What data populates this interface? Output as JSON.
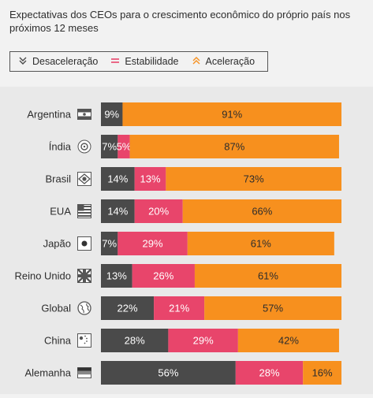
{
  "chart_data": {
    "type": "bar",
    "title": "Expectativas dos CEOs para o crescimento econômico do próprio país nos próximos 12 meses",
    "categories": [
      "Argentina",
      "Índia",
      "Brasil",
      "EUA",
      "Japão",
      "Reino Unido",
      "Global",
      "China",
      "Alemanha"
    ],
    "series": [
      {
        "name": "Desaceleração",
        "color": "#4a4a4a",
        "values": [
          9,
          7,
          14,
          14,
          7,
          13,
          22,
          28,
          56
        ]
      },
      {
        "name": "Estabilidade",
        "color": "#e8456b",
        "values": [
          0,
          5,
          13,
          20,
          29,
          26,
          21,
          29,
          28
        ]
      },
      {
        "name": "Aceleração",
        "color": "#f7901e",
        "values": [
          91,
          87,
          73,
          66,
          61,
          61,
          57,
          42,
          16
        ]
      }
    ],
    "value_labels": [
      [
        "9%",
        "",
        "91%"
      ],
      [
        "7%",
        "5%",
        "87%"
      ],
      [
        "14%",
        "13%",
        "73%"
      ],
      [
        "14%",
        "20%",
        "66%"
      ],
      [
        "7%",
        "29%",
        "61%"
      ],
      [
        "13%",
        "26%",
        "61%"
      ],
      [
        "22%",
        "21%",
        "57%"
      ],
      [
        "28%",
        "29%",
        "42%"
      ],
      [
        "56%",
        "28%",
        "16%"
      ]
    ],
    "stacked": true,
    "orientation": "horizontal",
    "xlim": [
      0,
      100
    ],
    "legend_position": "top-left",
    "grid": false
  },
  "legend": {
    "items": [
      {
        "label": "Desaceleração",
        "icon": "double-chevron-down-icon",
        "color": "#4a4a4a",
        "glyph": "≫"
      },
      {
        "label": "Estabilidade",
        "icon": "equals-icon",
        "color": "#e8456b",
        "glyph": "="
      },
      {
        "label": "Aceleração",
        "icon": "double-chevron-up-icon",
        "color": "#f7901e",
        "glyph": "≪"
      }
    ]
  },
  "flag_icons": [
    "argentina-flag-icon",
    "india-flag-icon",
    "brazil-flag-icon",
    "usa-flag-icon",
    "japan-flag-icon",
    "uk-flag-icon",
    "globe-icon",
    "china-flag-icon",
    "germany-flag-icon"
  ]
}
